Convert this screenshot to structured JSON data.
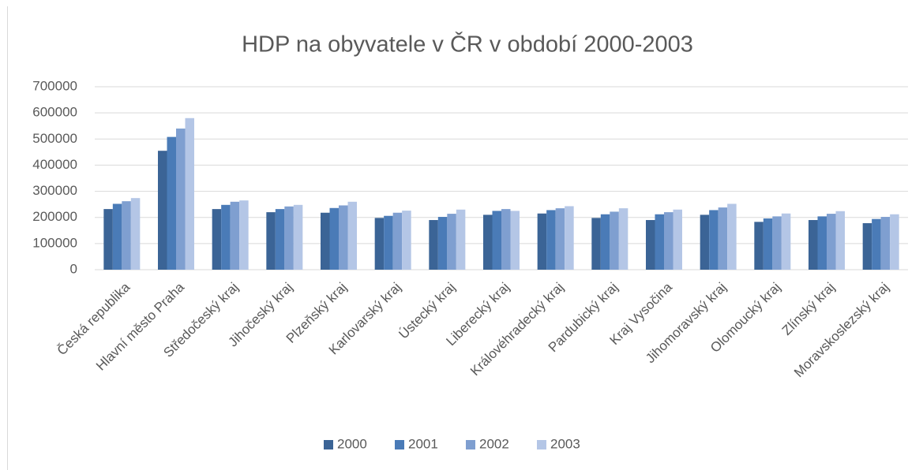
{
  "chart_data": {
    "type": "bar",
    "title": "HDP na obyvatele v ČR v období 2000-2003",
    "categories": [
      "Česká republika",
      "Hlavní město Praha",
      "Středočeský kraj",
      "Jihočeský kraj",
      "Plzeňský kraj",
      "Karlovarský kraj",
      "Ústecký kraj",
      "Liberecký kraj",
      "Královéhradecký kraj",
      "Pardubický kraj",
      "Kraj Vysočina",
      "Jihomoravský kraj",
      "Olomoucký kraj",
      "Zlínský kraj",
      "Moravskoslezský kraj"
    ],
    "series": [
      {
        "name": "2000",
        "color": "#3b6496",
        "values": [
          232000,
          455000,
          232000,
          220000,
          218000,
          198000,
          190000,
          210000,
          215000,
          198000,
          190000,
          210000,
          183000,
          190000,
          178000
        ]
      },
      {
        "name": "2001",
        "color": "#4a7bb7",
        "values": [
          252000,
          508000,
          248000,
          232000,
          236000,
          206000,
          202000,
          225000,
          228000,
          212000,
          212000,
          228000,
          196000,
          204000,
          194000
        ]
      },
      {
        "name": "2002",
        "color": "#7f9fd0",
        "values": [
          262000,
          540000,
          260000,
          242000,
          246000,
          218000,
          214000,
          232000,
          235000,
          222000,
          220000,
          238000,
          204000,
          214000,
          202000
        ]
      },
      {
        "name": "2003",
        "color": "#b4c6e6",
        "values": [
          274000,
          580000,
          265000,
          248000,
          260000,
          226000,
          230000,
          225000,
          243000,
          235000,
          230000,
          252000,
          215000,
          224000,
          212000
        ]
      }
    ],
    "ylim": [
      0,
      700000
    ],
    "yticks": [
      0,
      100000,
      200000,
      300000,
      400000,
      500000,
      600000,
      700000
    ],
    "grid": true,
    "legend": "bottom"
  }
}
